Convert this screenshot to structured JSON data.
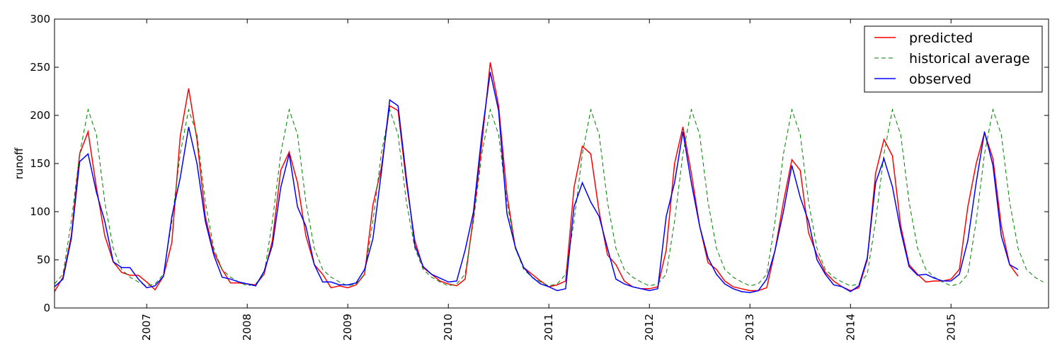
{
  "chart_data": {
    "type": "line",
    "ylabel": "runoff",
    "x": [
      2006.083,
      2006.167,
      2006.25,
      2006.333,
      2006.417,
      2006.5,
      2006.583,
      2006.667,
      2006.75,
      2006.833,
      2006.917,
      2007.0,
      2007.083,
      2007.167,
      2007.25,
      2007.333,
      2007.417,
      2007.5,
      2007.583,
      2007.667,
      2007.75,
      2007.833,
      2007.917,
      2008.0,
      2008.083,
      2008.167,
      2008.25,
      2008.333,
      2008.417,
      2008.5,
      2008.583,
      2008.667,
      2008.75,
      2008.833,
      2008.917,
      2009.0,
      2009.083,
      2009.167,
      2009.25,
      2009.333,
      2009.417,
      2009.5,
      2009.583,
      2009.667,
      2009.75,
      2009.833,
      2009.917,
      2010.0,
      2010.083,
      2010.167,
      2010.25,
      2010.333,
      2010.417,
      2010.5,
      2010.583,
      2010.667,
      2010.75,
      2010.833,
      2010.917,
      2011.0,
      2011.083,
      2011.167,
      2011.25,
      2011.333,
      2011.417,
      2011.5,
      2011.583,
      2011.667,
      2011.75,
      2011.833,
      2011.917,
      2012.0,
      2012.083,
      2012.167,
      2012.25,
      2012.333,
      2012.417,
      2012.5,
      2012.583,
      2012.667,
      2012.75,
      2012.833,
      2012.917,
      2013.0,
      2013.083,
      2013.167,
      2013.25,
      2013.333,
      2013.417,
      2013.5,
      2013.583,
      2013.667,
      2013.75,
      2013.833,
      2013.917,
      2014.0,
      2014.083,
      2014.167,
      2014.25,
      2014.333,
      2014.417,
      2014.5,
      2014.583,
      2014.667,
      2014.75,
      2014.833,
      2014.917,
      2015.0,
      2015.083,
      2015.167,
      2015.25,
      2015.333,
      2015.417,
      2015.5,
      2015.583,
      2015.667,
      2015.75,
      2015.833,
      2015.917
    ],
    "series": [
      {
        "name": "predicted",
        "color": "#ff0000",
        "dash": false,
        "values": [
          17,
          32,
          75,
          160,
          183,
          125,
          75,
          48,
          37,
          34,
          34,
          27,
          19,
          33,
          68,
          178,
          228,
          175,
          95,
          58,
          40,
          26,
          26,
          25,
          24,
          35,
          70,
          143,
          162,
          130,
          75,
          45,
          35,
          21,
          23,
          21,
          24,
          35,
          107,
          145,
          210,
          205,
          130,
          70,
          42,
          35,
          28,
          25,
          23,
          30,
          95,
          170,
          255,
          210,
          118,
          62,
          42,
          35,
          28,
          22,
          24,
          28,
          125,
          168,
          160,
          100,
          55,
          45,
          28,
          22,
          20,
          20,
          22,
          60,
          150,
          188,
          140,
          85,
          47,
          40,
          28,
          22,
          20,
          18,
          18,
          21,
          60,
          110,
          154,
          143,
          78,
          55,
          37,
          28,
          22,
          18,
          21,
          50,
          140,
          175,
          158,
          85,
          45,
          35,
          27,
          28,
          28,
          30,
          40,
          105,
          150,
          182,
          155,
          85,
          45,
          33,
          null,
          null,
          null
        ]
      },
      {
        "name": "historical average",
        "color": "#008000",
        "dash": true,
        "values": [
          25,
          35,
          90,
          160,
          206,
          180,
          110,
          62,
          40,
          32,
          27,
          23,
          25,
          35,
          90,
          160,
          206,
          180,
          110,
          62,
          40,
          32,
          27,
          23,
          25,
          35,
          90,
          160,
          206,
          180,
          110,
          62,
          40,
          32,
          27,
          23,
          25,
          35,
          90,
          160,
          206,
          180,
          110,
          62,
          40,
          32,
          27,
          23,
          25,
          35,
          90,
          160,
          206,
          180,
          110,
          62,
          40,
          32,
          27,
          23,
          25,
          35,
          90,
          160,
          206,
          180,
          110,
          62,
          40,
          32,
          27,
          23,
          25,
          35,
          90,
          160,
          206,
          180,
          110,
          62,
          40,
          32,
          27,
          23,
          25,
          35,
          90,
          160,
          206,
          180,
          110,
          62,
          40,
          32,
          27,
          23,
          25,
          35,
          90,
          160,
          206,
          180,
          110,
          62,
          40,
          32,
          27,
          23,
          25,
          35,
          90,
          160,
          206,
          180,
          110,
          62,
          40,
          32,
          27
        ]
      },
      {
        "name": "observed",
        "color": "#0000ff",
        "dash": false,
        "values": [
          22,
          30,
          72,
          152,
          160,
          120,
          90,
          48,
          42,
          42,
          30,
          21,
          23,
          33,
          95,
          135,
          188,
          150,
          90,
          55,
          32,
          30,
          27,
          25,
          23,
          38,
          65,
          125,
          160,
          105,
          85,
          45,
          27,
          27,
          24,
          24,
          26,
          40,
          72,
          140,
          216,
          210,
          135,
          65,
          43,
          35,
          31,
          27,
          28,
          60,
          100,
          180,
          245,
          205,
          98,
          63,
          42,
          32,
          25,
          22,
          18,
          20,
          105,
          130,
          110,
          95,
          62,
          30,
          25,
          22,
          20,
          18,
          20,
          95,
          130,
          183,
          130,
          85,
          52,
          35,
          25,
          20,
          17,
          16,
          18,
          30,
          60,
          100,
          148,
          115,
          90,
          50,
          35,
          24,
          22,
          17,
          23,
          52,
          130,
          155,
          126,
          80,
          43,
          34,
          35,
          31,
          28,
          28,
          35,
          70,
          130,
          183,
          148,
          75,
          45,
          40,
          null,
          null,
          null
        ]
      }
    ],
    "xlim": [
      2006.083,
      2015.97
    ],
    "xticks": [
      2007,
      2008,
      2009,
      2010,
      2011,
      2012,
      2013,
      2014,
      2015
    ],
    "ylim": [
      0,
      300
    ],
    "yticks": [
      0,
      50,
      100,
      150,
      200,
      250,
      300
    ],
    "legend": "upper right"
  }
}
